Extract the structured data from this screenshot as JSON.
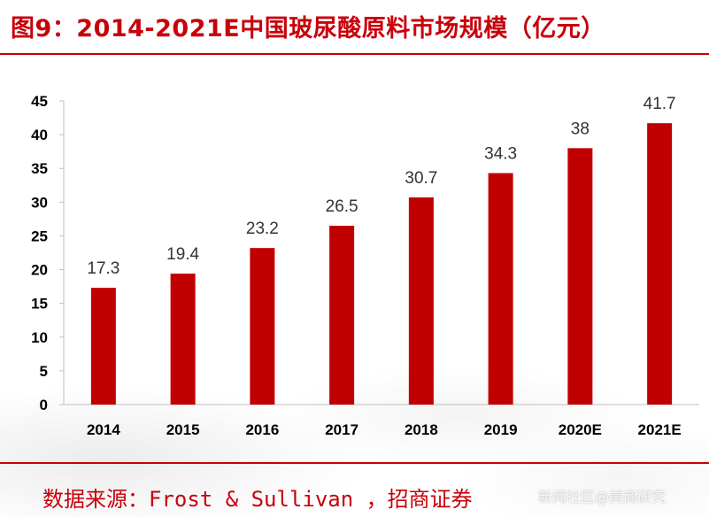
{
  "title": "图9：2014-2021E中国玻尿酸原料市场规模（亿元）",
  "source": "数据来源：Frost & Sullivan ，招商证券",
  "watermark": "新闻社区@美商研究",
  "colors": {
    "accent": "#c8000b",
    "bar": "#c00000"
  },
  "chart_data": {
    "type": "bar",
    "title": "图9：2014-2021E中国玻尿酸原料市场规模（亿元）",
    "categories": [
      "2014",
      "2015",
      "2016",
      "2017",
      "2018",
      "2019",
      "2020E",
      "2021E"
    ],
    "values": [
      17.3,
      19.4,
      23.2,
      26.5,
      30.7,
      34.3,
      38,
      41.7
    ],
    "value_labels": [
      "17.3",
      "19.4",
      "23.2",
      "26.5",
      "30.7",
      "34.3",
      "38",
      "41.7"
    ],
    "xlabel": "",
    "ylabel": "",
    "ylim": [
      0,
      45
    ],
    "yticks": [
      0,
      5,
      10,
      15,
      20,
      25,
      30,
      35,
      40,
      45
    ],
    "grid": false,
    "legend": "none"
  }
}
